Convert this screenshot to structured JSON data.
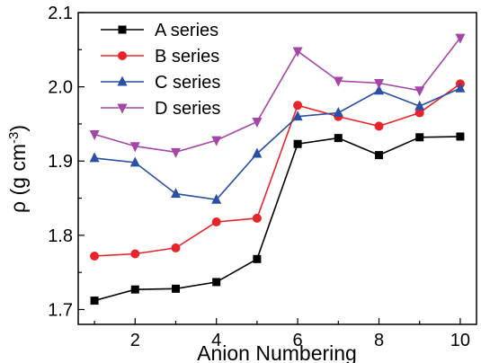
{
  "chart_data": {
    "type": "line",
    "xlabel": "Anion Numbering",
    "ylabel": {
      "symbol": "ρ",
      "open": " (g cm",
      "exponent": "-3",
      "close": ")"
    },
    "x": [
      1,
      2,
      3,
      4,
      5,
      6,
      7,
      8,
      9,
      10
    ],
    "xlim": [
      0.6,
      10.4
    ],
    "ylim": [
      1.68,
      2.1
    ],
    "xticks": [
      2,
      4,
      6,
      8,
      10
    ],
    "yticks": [
      1.7,
      1.8,
      1.9,
      2.0,
      2.1
    ],
    "ytick_labels": [
      "1.7",
      "1.8",
      "1.9",
      "2.0",
      "2.1"
    ],
    "grid": false,
    "legend_position": "top-left",
    "series": [
      {
        "name": "A series",
        "color": "#000000",
        "marker": "square",
        "values": [
          1.712,
          1.727,
          1.728,
          1.737,
          1.768,
          1.923,
          1.931,
          1.908,
          1.932,
          1.933
        ]
      },
      {
        "name": "B series",
        "color": "#e8242a",
        "marker": "circle",
        "values": [
          1.772,
          1.775,
          1.783,
          1.818,
          1.823,
          1.975,
          1.96,
          1.947,
          1.965,
          2.004
        ]
      },
      {
        "name": "C series",
        "color": "#2a4fa3",
        "marker": "triangle-up",
        "values": [
          1.904,
          1.898,
          1.856,
          1.848,
          1.91,
          1.96,
          1.965,
          1.995,
          1.974,
          1.998
        ]
      },
      {
        "name": "D series",
        "color": "#a545a8",
        "marker": "triangle-down",
        "values": [
          1.936,
          1.92,
          1.912,
          1.928,
          1.953,
          2.048,
          2.008,
          2.005,
          1.995,
          2.066
        ]
      }
    ]
  }
}
